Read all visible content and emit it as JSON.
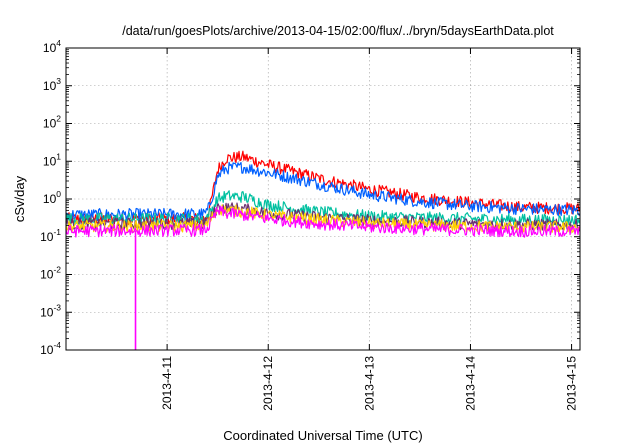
{
  "chart_data": {
    "type": "line",
    "title": "/data/run/goesPlots/archive/2013-04-15/02:00/flux/../bryn/5daysEarthData.plot",
    "xlabel": "Coordinated Universal Time (UTC)",
    "ylabel": "cSv/day",
    "xlim": [
      "2013-04-10T00:00",
      "2013-04-15T02:00"
    ],
    "ylim": [
      0.0001,
      10000
    ],
    "yscale": "log",
    "grid": true,
    "legend": "none",
    "xticks": [
      {
        "label": "2013-4-11",
        "x": "2013-04-11T00:00"
      },
      {
        "label": "2013-4-12",
        "x": "2013-04-12T00:00"
      },
      {
        "label": "2013-4-13",
        "x": "2013-04-13T00:00"
      },
      {
        "label": "2013-4-14",
        "x": "2013-04-14T00:00"
      },
      {
        "label": "2013-4-15",
        "x": "2013-04-15T00:00"
      }
    ],
    "yticks": [
      {
        "base": "10",
        "exp": "-4",
        "value": 0.0001
      },
      {
        "base": "10",
        "exp": "-3",
        "value": 0.001
      },
      {
        "base": "10",
        "exp": "-2",
        "value": 0.01
      },
      {
        "base": "10",
        "exp": "-1",
        "value": 0.1
      },
      {
        "base": "10",
        "exp": "0",
        "value": 1
      },
      {
        "base": "10",
        "exp": "1",
        "value": 10
      },
      {
        "base": "10",
        "exp": "2",
        "value": 100
      },
      {
        "base": "10",
        "exp": "3",
        "value": 1000
      },
      {
        "base": "10",
        "exp": "4",
        "value": 10000
      }
    ],
    "x": [
      "2013-04-10T00:00",
      "2013-04-11T09:00",
      "2013-04-11T10:00",
      "2013-04-11T12:00",
      "2013-04-11T14:00",
      "2013-04-11T18:00",
      "2013-04-12T00:00",
      "2013-04-12T12:00",
      "2013-04-13T00:00",
      "2013-04-13T12:00",
      "2013-04-14T00:00",
      "2013-04-14T12:00",
      "2013-04-15T02:00"
    ],
    "series": [
      {
        "color": "#ff0000",
        "values": [
          0.3,
          0.3,
          0.5,
          6.0,
          12.0,
          13.0,
          8.0,
          3.5,
          1.8,
          1.1,
          0.8,
          0.6,
          0.55
        ]
      },
      {
        "color": "#0060ff",
        "values": [
          0.38,
          0.4,
          0.6,
          4.0,
          6.5,
          7.0,
          5.0,
          2.5,
          1.3,
          0.85,
          0.65,
          0.55,
          0.5
        ]
      },
      {
        "color": "#00c0a0",
        "values": [
          0.3,
          0.3,
          0.4,
          1.0,
          1.2,
          1.15,
          0.7,
          0.45,
          0.35,
          0.32,
          0.3,
          0.28,
          0.28
        ]
      },
      {
        "color": "#6a2f6f",
        "values": [
          0.22,
          0.22,
          0.28,
          0.6,
          0.58,
          0.55,
          0.42,
          0.33,
          0.27,
          0.24,
          0.22,
          0.21,
          0.2
        ]
      },
      {
        "color": "#ffd000",
        "values": [
          0.19,
          0.19,
          0.25,
          0.55,
          0.5,
          0.47,
          0.37,
          0.28,
          0.23,
          0.2,
          0.19,
          0.18,
          0.18
        ]
      },
      {
        "color": "#ff00ff",
        "values": [
          0.14,
          0.15,
          0.2,
          0.48,
          0.42,
          0.38,
          0.3,
          0.22,
          0.18,
          0.16,
          0.15,
          0.14,
          0.14
        ]
      }
    ],
    "annotations": [
      {
        "series": 5,
        "x": "2013-04-10T16:30",
        "y": 0.0001,
        "kind": "dropout"
      }
    ]
  }
}
